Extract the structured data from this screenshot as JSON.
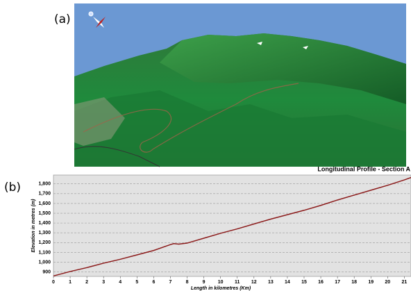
{
  "panel_labels": {
    "a": "(a)",
    "b": "(b)"
  },
  "chart_data": {
    "type": "line",
    "title": "Longitudinal Profile - Section A",
    "x_label": "Length in kilometres (Km)",
    "y_label": "Elevation in metres (m)",
    "x": [
      0,
      1,
      2,
      3,
      4,
      5,
      6,
      7,
      7.2,
      7.5,
      8,
      9,
      10,
      11,
      12,
      13,
      14,
      15,
      16,
      17,
      18,
      19,
      20,
      21,
      21.4
    ],
    "values": [
      860,
      905,
      945,
      990,
      1030,
      1075,
      1120,
      1180,
      1190,
      1185,
      1195,
      1245,
      1295,
      1340,
      1390,
      1440,
      1485,
      1530,
      1580,
      1635,
      1685,
      1735,
      1785,
      1840,
      1865
    ],
    "color": "#8b1a1a",
    "xlim": [
      0,
      21.4
    ],
    "xticks": [
      0,
      1,
      2,
      3,
      4,
      5,
      6,
      7,
      8,
      9,
      10,
      11,
      12,
      13,
      14,
      15,
      16,
      17,
      18,
      19,
      20,
      21
    ],
    "ylim": [
      855,
      1890
    ],
    "yticks": [
      900,
      {
        "value": 1000,
        "label": "1,000"
      },
      {
        "value": 1100,
        "label": "1,100"
      },
      {
        "value": 1200,
        "label": "1,200"
      },
      {
        "value": 1300,
        "label": "1,300"
      },
      {
        "value": 1400,
        "label": "1,400"
      },
      {
        "value": 1500,
        "label": "1,500"
      },
      {
        "value": 1600,
        "label": "1,600"
      },
      {
        "value": 1700,
        "label": "1,700"
      },
      {
        "value": 1800,
        "label": "1,800"
      }
    ],
    "grid": true
  }
}
